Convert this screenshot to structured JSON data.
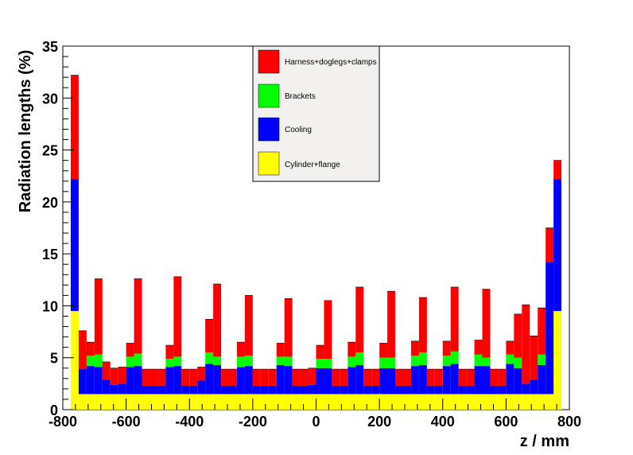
{
  "chart_data": {
    "type": "area",
    "stacked": true,
    "xlabel": "z / mm",
    "ylabel": "Radiation lengths (%)",
    "xlim": [
      -800,
      800
    ],
    "ylim": [
      0,
      35
    ],
    "xticks": [
      "-800",
      "-600",
      "-400",
      "-200",
      "0",
      "200",
      "400",
      "600",
      "800"
    ],
    "yticks": [
      "0",
      "5",
      "10",
      "15",
      "20",
      "25",
      "30",
      "35"
    ],
    "legend_position": "top-center",
    "bin_width": 25,
    "x": [
      -762.5,
      -737.5,
      -712.5,
      -687.5,
      -662.5,
      -637.5,
      -612.5,
      -587.5,
      -562.5,
      -537.5,
      -512.5,
      -487.5,
      -462.5,
      -437.5,
      -412.5,
      -387.5,
      -362.5,
      -337.5,
      -312.5,
      -287.5,
      -262.5,
      -237.5,
      -212.5,
      -187.5,
      -162.5,
      -137.5,
      -112.5,
      -87.5,
      -62.5,
      -37.5,
      -12.5,
      12.5,
      37.5,
      62.5,
      87.5,
      112.5,
      137.5,
      162.5,
      187.5,
      212.5,
      237.5,
      262.5,
      287.5,
      312.5,
      337.5,
      362.5,
      387.5,
      412.5,
      437.5,
      462.5,
      487.5,
      512.5,
      537.5,
      562.5,
      587.5,
      612.5,
      637.5,
      662.5,
      687.5,
      712.5,
      737.5,
      762.5
    ],
    "series": [
      {
        "name": "Cylinder+flange",
        "color": "#ffff00",
        "values": [
          9.5,
          1.5,
          1.5,
          1.5,
          1.5,
          1.5,
          1.5,
          1.5,
          1.5,
          1.5,
          1.5,
          1.5,
          1.5,
          1.5,
          1.5,
          1.5,
          1.5,
          1.5,
          1.5,
          1.5,
          1.5,
          1.5,
          1.5,
          1.5,
          1.5,
          1.5,
          1.5,
          1.5,
          1.5,
          1.5,
          1.5,
          1.5,
          1.5,
          1.5,
          1.5,
          1.5,
          1.5,
          1.5,
          1.5,
          1.5,
          1.5,
          1.5,
          1.5,
          1.5,
          1.5,
          1.5,
          1.5,
          1.5,
          1.5,
          1.5,
          1.5,
          1.5,
          1.5,
          1.5,
          1.5,
          1.5,
          1.5,
          1.5,
          1.5,
          1.5,
          1.5,
          9.5
        ]
      },
      {
        "name": "Cooling",
        "color": "#0000ff",
        "values": [
          12.7,
          2.4,
          2.7,
          2.6,
          1.4,
          0.9,
          1.0,
          2.6,
          2.7,
          0.8,
          0.8,
          0.8,
          2.6,
          2.7,
          0.8,
          0.8,
          1.3,
          2.9,
          2.8,
          0.8,
          0.8,
          2.6,
          2.7,
          0.8,
          0.8,
          0.8,
          2.8,
          2.7,
          0.8,
          0.8,
          0.9,
          2.5,
          2.5,
          0.8,
          0.8,
          2.6,
          2.8,
          0.8,
          0.8,
          2.5,
          2.5,
          0.8,
          0.8,
          2.7,
          2.8,
          0.8,
          0.8,
          2.7,
          2.9,
          0.8,
          0.8,
          2.7,
          2.7,
          0.8,
          0.8,
          2.9,
          2.5,
          1.0,
          1.4,
          2.8,
          12.7,
          12.7
        ]
      },
      {
        "name": "Brackets",
        "color": "#00ff00",
        "values": [
          0,
          0,
          1.0,
          1.2,
          0,
          0,
          0,
          1.0,
          1.2,
          0,
          0,
          0,
          0.8,
          0.9,
          0,
          0,
          0,
          1.1,
          0.8,
          0,
          0,
          1.0,
          1.0,
          0,
          0,
          0,
          0.8,
          0.9,
          0,
          0,
          0,
          0.9,
          0.9,
          0,
          0,
          1.0,
          1.2,
          0,
          0,
          1.0,
          1.0,
          0,
          0,
          1.0,
          1.2,
          0,
          0,
          1.0,
          1.2,
          0,
          0,
          1.1,
          0.8,
          0,
          0,
          0.9,
          1.0,
          0,
          0,
          1.0,
          0,
          0
        ]
      },
      {
        "name": "Harness+doglegs+clamps",
        "color": "#ff0000",
        "values": [
          10.0,
          3.7,
          1.3,
          7.3,
          1.7,
          1.6,
          1.6,
          1.3,
          7.2,
          1.6,
          1.6,
          1.6,
          1.3,
          7.7,
          1.6,
          1.6,
          1.3,
          3.2,
          7.0,
          1.6,
          1.6,
          1.4,
          5.8,
          1.6,
          1.6,
          1.6,
          1.3,
          5.6,
          1.6,
          1.6,
          1.6,
          1.3,
          5.6,
          1.6,
          1.6,
          1.4,
          6.3,
          1.6,
          1.6,
          1.4,
          6.4,
          1.6,
          1.6,
          1.4,
          5.3,
          1.6,
          1.6,
          1.4,
          6.2,
          1.6,
          1.6,
          1.4,
          6.6,
          1.6,
          1.6,
          1.3,
          4.2,
          7.6,
          4.2,
          4.5,
          3.3,
          1.8
        ]
      }
    ],
    "legend": [
      "Harness+doglegs+clamps",
      "Brackets",
      "Cooling",
      "Cylinder+flange"
    ]
  }
}
